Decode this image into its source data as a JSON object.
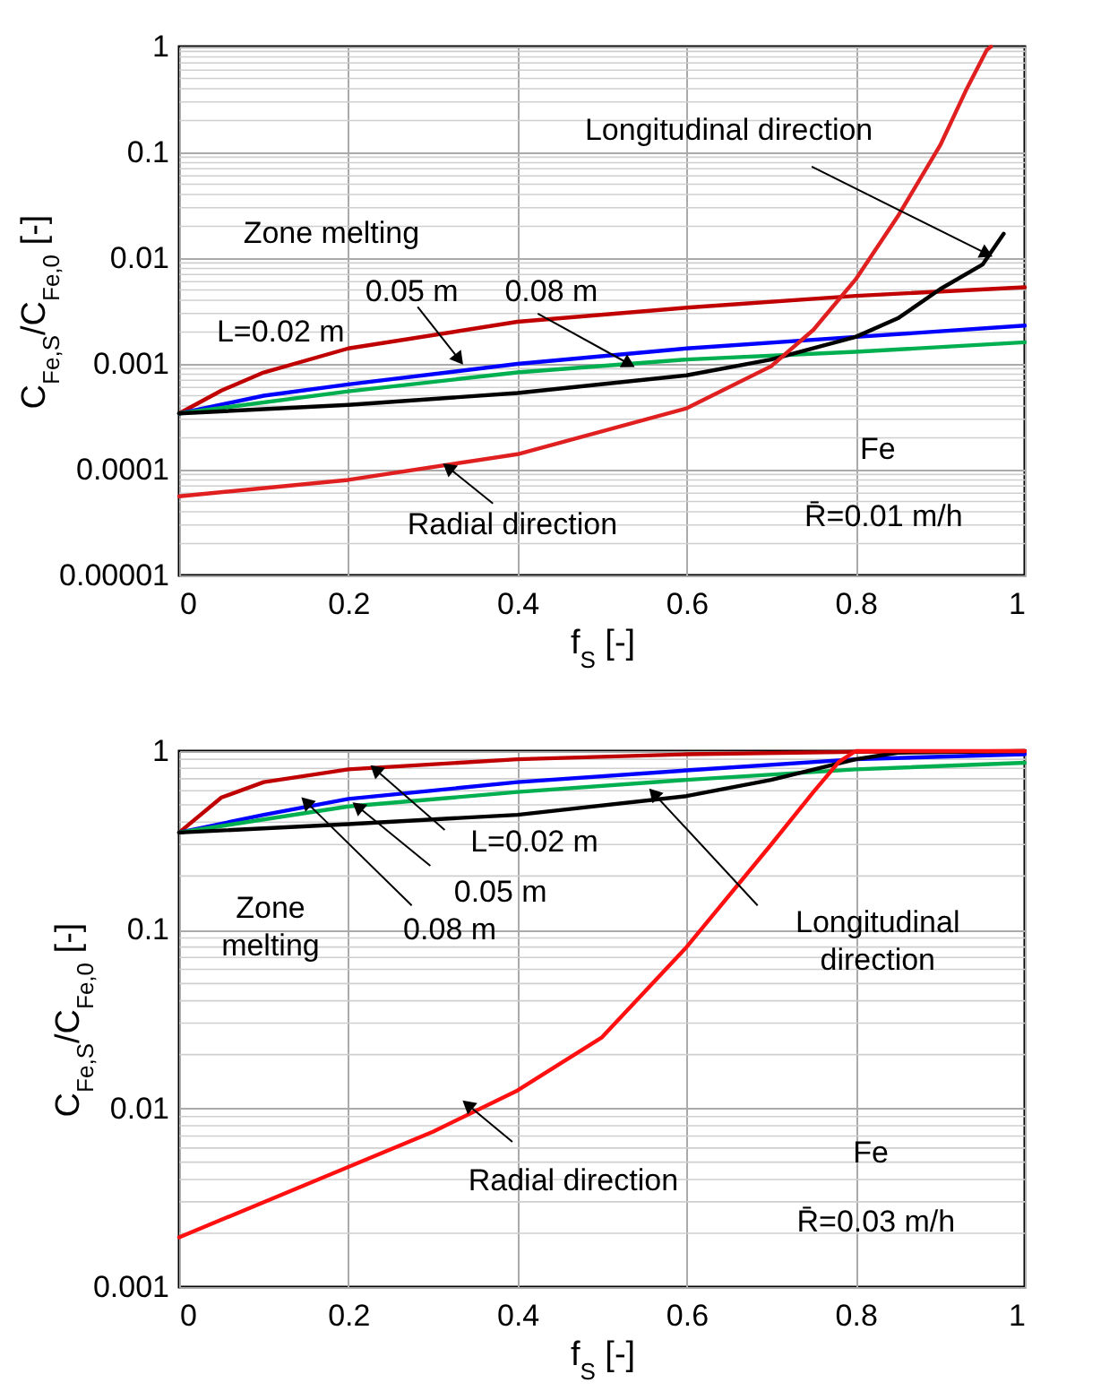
{
  "chart_data": [
    {
      "type": "line",
      "xlabel": "f$_{S}$ [-]",
      "ylabel": "C$_{Fe,S}$/C$_{Fe,0}$ [-]",
      "log": "y",
      "grid": true,
      "xlim": [
        0,
        1
      ],
      "xticks": [
        0,
        0.2,
        0.4,
        0.6,
        0.8,
        1
      ],
      "ylim": [
        1e-05,
        1
      ],
      "yticks": [
        {
          "value": 1e-05,
          "label": "0.00001"
        },
        0.0001,
        0.001,
        0.01,
        0.1,
        1
      ],
      "line_style": "solid",
      "series": [
        {
          "color": "#c00000",
          "x": [
            0,
            0.05,
            0.1,
            0.2,
            0.4,
            0.6,
            0.8,
            1
          ],
          "values": [
            0.00034,
            0.00056,
            0.00083,
            0.0014,
            0.0025,
            0.0034,
            0.0044,
            0.0053
          ]
        },
        {
          "color": "#0000ff",
          "x": [
            0,
            0.1,
            0.2,
            0.4,
            0.6,
            0.8,
            1
          ],
          "values": [
            0.00034,
            0.0005,
            0.00064,
            0.001,
            0.0014,
            0.0018,
            0.0023
          ]
        },
        {
          "color": "#00b050",
          "x": [
            0,
            0.2,
            0.4,
            0.6,
            0.8,
            1
          ],
          "values": [
            0.00034,
            0.00055,
            0.00083,
            0.0011,
            0.0013,
            0.0016
          ]
        },
        {
          "color": "#000000",
          "x": [
            0,
            0.2,
            0.4,
            0.6,
            0.7,
            0.8,
            0.85,
            0.9,
            0.95,
            0.975
          ],
          "values": [
            0.00034,
            0.00041,
            0.00053,
            0.00078,
            0.0011,
            0.0018,
            0.0027,
            0.0051,
            0.0087,
            0.017
          ]
        },
        {
          "color": "#e02020",
          "x": [
            0,
            0.2,
            0.4,
            0.6,
            0.7,
            0.75,
            0.8,
            0.85,
            0.9,
            0.93,
            0.955,
            0.96
          ],
          "values": [
            5.6e-05,
            8e-05,
            0.00014,
            0.00038,
            0.00095,
            0.0021,
            0.0063,
            0.025,
            0.117,
            0.38,
            0.93,
            1
          ]
        }
      ],
      "annotations": [
        {
          "text": "Longitudinal direction",
          "x": 0.955,
          "y": 0.011
        },
        "Zone melting",
        "L=0.02 m",
        {
          "text": "0.05 m",
          "x": 0.331,
          "y": 0.0011
        },
        {
          "text": "0.08 m",
          "x": 0.532,
          "y": 0.001
        },
        {
          "text": "Radial direction",
          "x": 0.318,
          "y": 0.000105
        },
        "Fe",
        "R̄=0.01 m/h"
      ]
    },
    {
      "type": "line",
      "xlabel": "f$_{S}$ [-]",
      "ylabel": "C$_{Fe,S}$/C$_{Fe,0}$ [-]",
      "log": "y",
      "grid": true,
      "xlim": [
        0,
        1
      ],
      "xticks": [
        0,
        0.2,
        0.4,
        0.6,
        0.8,
        1
      ],
      "ylim": [
        0.001,
        1
      ],
      "yticks": [
        0.001,
        0.01,
        0.1,
        1
      ],
      "line_style": "solid",
      "series": [
        {
          "color": "#c00000",
          "x": [
            0,
            0.05,
            0.1,
            0.2,
            0.4,
            0.6,
            0.8,
            1
          ],
          "values": [
            0.35,
            0.55,
            0.67,
            0.79,
            0.9,
            0.96,
            0.99,
            1
          ]
        },
        {
          "color": "#0000ff",
          "x": [
            0,
            0.1,
            0.2,
            0.4,
            0.6,
            0.8,
            1
          ],
          "values": [
            0.35,
            0.44,
            0.54,
            0.67,
            0.78,
            0.9,
            0.96
          ]
        },
        {
          "color": "#00b050",
          "x": [
            0,
            0.2,
            0.4,
            0.6,
            0.8,
            1
          ],
          "values": [
            0.35,
            0.49,
            0.59,
            0.69,
            0.79,
            0.86
          ]
        },
        {
          "color": "#000000",
          "x": [
            0,
            0.2,
            0.4,
            0.6,
            0.7,
            0.8,
            0.85,
            1
          ],
          "values": [
            0.35,
            0.39,
            0.44,
            0.56,
            0.69,
            0.9,
            0.98,
            1
          ]
        },
        {
          "color": "#ff1010",
          "x": [
            0,
            0.2,
            0.3,
            0.4,
            0.5,
            0.6,
            0.7,
            0.75,
            0.78,
            0.8,
            1
          ],
          "values": [
            0.0019,
            0.0047,
            0.0074,
            0.0126,
            0.025,
            0.08,
            0.3,
            0.59,
            0.87,
            1,
            1
          ]
        }
      ],
      "annotations": [
        {
          "text": "L=0.02 m",
          "x": 0.232,
          "y": 0.79
        },
        {
          "text": "0.05 m",
          "x": 0.211,
          "y": 0.49
        },
        {
          "text": "0.08 m",
          "x": 0.15,
          "y": 0.52
        },
        "Zone melting",
        {
          "text": "Longitudinal direction",
          "x": 0.561,
          "y": 0.58
        },
        {
          "text": "Radial direction",
          "x": 0.341,
          "y": 0.0105
        },
        "Fe",
        "R̄=0.03 m/h"
      ]
    }
  ]
}
